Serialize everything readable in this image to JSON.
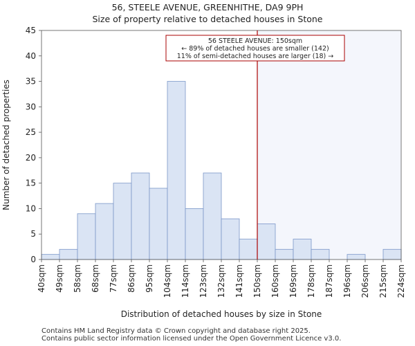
{
  "chart_data": {
    "type": "bar",
    "title": "56, STEELE AVENUE, GREENHITHE, DA9 9PH",
    "subtitle": "Size of property relative to detached houses in Stone",
    "xlabel": "Distribution of detached houses by size in Stone",
    "ylabel": "Number of detached properties",
    "ylim": [
      0,
      45
    ],
    "yticks": [
      0,
      5,
      10,
      15,
      20,
      25,
      30,
      35,
      40,
      45
    ],
    "bin_edges": [
      "40sqm",
      "49sqm",
      "58sqm",
      "68sqm",
      "77sqm",
      "86sqm",
      "95sqm",
      "104sqm",
      "114sqm",
      "123sqm",
      "132sqm",
      "141sqm",
      "150sqm",
      "160sqm",
      "169sqm",
      "178sqm",
      "187sqm",
      "196sqm",
      "206sqm",
      "215sqm",
      "224sqm"
    ],
    "values": [
      1,
      2,
      9,
      11,
      15,
      17,
      14,
      35,
      10,
      17,
      8,
      4,
      7,
      2,
      4,
      2,
      0,
      1,
      0,
      2
    ],
    "marker": {
      "value": "150sqm",
      "bin_index": 12,
      "line_color": "#aa0000",
      "annotation": [
        "56 STEELE AVENUE: 150sqm",
        "← 89% of detached houses are smaller (142)",
        "11% of semi-detached houses are larger (18) →"
      ]
    },
    "colors": {
      "bar_fill": "#dae4f4",
      "bar_edge": "#7a96c8",
      "highlight_fill": "#f4f6fc",
      "axis": "#555555"
    },
    "grid": false
  },
  "footer": {
    "line1": "Contains HM Land Registry data © Crown copyright and database right 2025.",
    "line2": "Contains public sector information licensed under the Open Government Licence v3.0."
  }
}
